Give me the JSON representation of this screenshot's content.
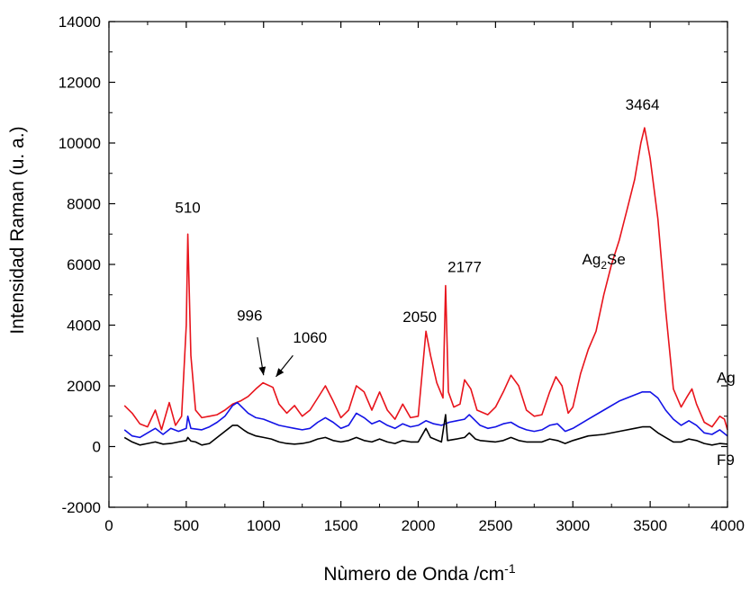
{
  "chart_data": {
    "type": "line",
    "xlabel": "Nùmero de Onda /cm",
    "xlabel_sup": "-1",
    "ylabel": "Intensidad Raman (u. a.)",
    "xlim": [
      0,
      4000
    ],
    "ylim": [
      -2000,
      14000
    ],
    "x_ticks": [
      0,
      500,
      1000,
      1500,
      2000,
      2500,
      3000,
      3500,
      4000
    ],
    "y_ticks": [
      -2000,
      0,
      2000,
      4000,
      6000,
      8000,
      10000,
      12000,
      14000
    ],
    "grid": false,
    "series": [
      {
        "name": "Ag2Se",
        "color": "#e8141c",
        "points": [
          [
            100,
            1350
          ],
          [
            150,
            1100
          ],
          [
            200,
            750
          ],
          [
            250,
            650
          ],
          [
            300,
            1200
          ],
          [
            340,
            550
          ],
          [
            390,
            1450
          ],
          [
            430,
            700
          ],
          [
            470,
            1000
          ],
          [
            500,
            4000
          ],
          [
            510,
            7000
          ],
          [
            530,
            3000
          ],
          [
            560,
            1200
          ],
          [
            600,
            950
          ],
          [
            650,
            1000
          ],
          [
            700,
            1050
          ],
          [
            750,
            1200
          ],
          [
            800,
            1400
          ],
          [
            850,
            1500
          ],
          [
            900,
            1650
          ],
          [
            950,
            1900
          ],
          [
            996,
            2100
          ],
          [
            1060,
            1950
          ],
          [
            1100,
            1400
          ],
          [
            1150,
            1100
          ],
          [
            1200,
            1350
          ],
          [
            1250,
            1000
          ],
          [
            1300,
            1200
          ],
          [
            1350,
            1600
          ],
          [
            1400,
            2000
          ],
          [
            1450,
            1500
          ],
          [
            1500,
            950
          ],
          [
            1550,
            1200
          ],
          [
            1600,
            2000
          ],
          [
            1650,
            1800
          ],
          [
            1700,
            1200
          ],
          [
            1750,
            1800
          ],
          [
            1800,
            1200
          ],
          [
            1850,
            900
          ],
          [
            1900,
            1400
          ],
          [
            1950,
            950
          ],
          [
            2000,
            1000
          ],
          [
            2050,
            3800
          ],
          [
            2080,
            3000
          ],
          [
            2120,
            2100
          ],
          [
            2160,
            1600
          ],
          [
            2177,
            5300
          ],
          [
            2195,
            1800
          ],
          [
            2230,
            1300
          ],
          [
            2270,
            1400
          ],
          [
            2300,
            2200
          ],
          [
            2340,
            1900
          ],
          [
            2380,
            1200
          ],
          [
            2450,
            1050
          ],
          [
            2500,
            1300
          ],
          [
            2550,
            1800
          ],
          [
            2600,
            2350
          ],
          [
            2650,
            2000
          ],
          [
            2700,
            1200
          ],
          [
            2750,
            1000
          ],
          [
            2800,
            1050
          ],
          [
            2850,
            1800
          ],
          [
            2890,
            2300
          ],
          [
            2930,
            2000
          ],
          [
            2970,
            1100
          ],
          [
            3000,
            1300
          ],
          [
            3050,
            2400
          ],
          [
            3100,
            3200
          ],
          [
            3150,
            3800
          ],
          [
            3200,
            5000
          ],
          [
            3250,
            6000
          ],
          [
            3300,
            6800
          ],
          [
            3350,
            7800
          ],
          [
            3400,
            8800
          ],
          [
            3440,
            10000
          ],
          [
            3464,
            10500
          ],
          [
            3500,
            9500
          ],
          [
            3550,
            7500
          ],
          [
            3600,
            4500
          ],
          [
            3650,
            1900
          ],
          [
            3700,
            1300
          ],
          [
            3740,
            1650
          ],
          [
            3770,
            1900
          ],
          [
            3800,
            1400
          ],
          [
            3850,
            800
          ],
          [
            3900,
            650
          ],
          [
            3950,
            1000
          ],
          [
            3980,
            900
          ],
          [
            4000,
            550
          ]
        ]
      },
      {
        "name": "Ag",
        "color": "#1212e6",
        "points": [
          [
            100,
            550
          ],
          [
            150,
            350
          ],
          [
            200,
            300
          ],
          [
            250,
            450
          ],
          [
            300,
            600
          ],
          [
            350,
            400
          ],
          [
            400,
            600
          ],
          [
            450,
            500
          ],
          [
            500,
            600
          ],
          [
            510,
            1000
          ],
          [
            530,
            600
          ],
          [
            600,
            550
          ],
          [
            650,
            650
          ],
          [
            700,
            800
          ],
          [
            750,
            1000
          ],
          [
            800,
            1350
          ],
          [
            830,
            1450
          ],
          [
            870,
            1250
          ],
          [
            900,
            1100
          ],
          [
            950,
            950
          ],
          [
            1000,
            900
          ],
          [
            1050,
            800
          ],
          [
            1100,
            700
          ],
          [
            1150,
            650
          ],
          [
            1200,
            600
          ],
          [
            1250,
            550
          ],
          [
            1300,
            600
          ],
          [
            1350,
            800
          ],
          [
            1400,
            950
          ],
          [
            1450,
            800
          ],
          [
            1500,
            600
          ],
          [
            1550,
            700
          ],
          [
            1600,
            1100
          ],
          [
            1650,
            950
          ],
          [
            1700,
            750
          ],
          [
            1750,
            850
          ],
          [
            1800,
            700
          ],
          [
            1850,
            600
          ],
          [
            1900,
            750
          ],
          [
            1950,
            650
          ],
          [
            2000,
            700
          ],
          [
            2050,
            850
          ],
          [
            2100,
            750
          ],
          [
            2150,
            700
          ],
          [
            2177,
            750
          ],
          [
            2200,
            800
          ],
          [
            2250,
            850
          ],
          [
            2300,
            900
          ],
          [
            2330,
            1050
          ],
          [
            2370,
            850
          ],
          [
            2400,
            700
          ],
          [
            2450,
            600
          ],
          [
            2500,
            650
          ],
          [
            2550,
            750
          ],
          [
            2600,
            800
          ],
          [
            2650,
            650
          ],
          [
            2700,
            550
          ],
          [
            2750,
            500
          ],
          [
            2800,
            550
          ],
          [
            2850,
            700
          ],
          [
            2900,
            750
          ],
          [
            2950,
            500
          ],
          [
            3000,
            600
          ],
          [
            3100,
            900
          ],
          [
            3200,
            1200
          ],
          [
            3300,
            1500
          ],
          [
            3400,
            1700
          ],
          [
            3450,
            1800
          ],
          [
            3500,
            1800
          ],
          [
            3550,
            1600
          ],
          [
            3600,
            1200
          ],
          [
            3650,
            900
          ],
          [
            3700,
            700
          ],
          [
            3750,
            850
          ],
          [
            3800,
            700
          ],
          [
            3850,
            450
          ],
          [
            3900,
            400
          ],
          [
            3950,
            550
          ],
          [
            4000,
            350
          ]
        ]
      },
      {
        "name": "F9",
        "color": "#000000",
        "points": [
          [
            100,
            300
          ],
          [
            150,
            150
          ],
          [
            200,
            50
          ],
          [
            250,
            100
          ],
          [
            300,
            150
          ],
          [
            350,
            80
          ],
          [
            400,
            100
          ],
          [
            450,
            150
          ],
          [
            500,
            200
          ],
          [
            510,
            300
          ],
          [
            530,
            180
          ],
          [
            560,
            150
          ],
          [
            600,
            50
          ],
          [
            650,
            100
          ],
          [
            700,
            300
          ],
          [
            750,
            500
          ],
          [
            800,
            700
          ],
          [
            830,
            700
          ],
          [
            870,
            550
          ],
          [
            900,
            450
          ],
          [
            950,
            350
          ],
          [
            1000,
            300
          ],
          [
            1050,
            250
          ],
          [
            1100,
            150
          ],
          [
            1150,
            100
          ],
          [
            1200,
            80
          ],
          [
            1250,
            100
          ],
          [
            1300,
            150
          ],
          [
            1350,
            250
          ],
          [
            1400,
            300
          ],
          [
            1450,
            200
          ],
          [
            1500,
            150
          ],
          [
            1550,
            200
          ],
          [
            1600,
            300
          ],
          [
            1650,
            200
          ],
          [
            1700,
            150
          ],
          [
            1750,
            250
          ],
          [
            1800,
            150
          ],
          [
            1850,
            100
          ],
          [
            1900,
            200
          ],
          [
            1950,
            150
          ],
          [
            2000,
            150
          ],
          [
            2050,
            600
          ],
          [
            2080,
            300
          ],
          [
            2150,
            150
          ],
          [
            2177,
            1050
          ],
          [
            2190,
            200
          ],
          [
            2250,
            250
          ],
          [
            2300,
            300
          ],
          [
            2330,
            450
          ],
          [
            2370,
            250
          ],
          [
            2400,
            200
          ],
          [
            2500,
            150
          ],
          [
            2550,
            200
          ],
          [
            2600,
            300
          ],
          [
            2650,
            200
          ],
          [
            2700,
            150
          ],
          [
            2800,
            150
          ],
          [
            2850,
            250
          ],
          [
            2900,
            200
          ],
          [
            2950,
            100
          ],
          [
            3000,
            200
          ],
          [
            3100,
            350
          ],
          [
            3200,
            400
          ],
          [
            3300,
            500
          ],
          [
            3400,
            600
          ],
          [
            3450,
            650
          ],
          [
            3500,
            650
          ],
          [
            3550,
            450
          ],
          [
            3600,
            300
          ],
          [
            3650,
            150
          ],
          [
            3700,
            150
          ],
          [
            3750,
            250
          ],
          [
            3800,
            200
          ],
          [
            3850,
            100
          ],
          [
            3900,
            50
          ],
          [
            3950,
            100
          ],
          [
            4000,
            80
          ]
        ]
      }
    ],
    "annotations": [
      {
        "text": "510",
        "x": 510,
        "y": 7700
      },
      {
        "text": "996",
        "x": 910,
        "y": 4150
      },
      {
        "text": "1060",
        "x": 1300,
        "y": 3420
      },
      {
        "text": "2050",
        "x": 2010,
        "y": 4100
      },
      {
        "text": "2177",
        "x": 2300,
        "y": 5750
      },
      {
        "text": "3464",
        "x": 3450,
        "y": 11100
      }
    ],
    "arrows": [
      {
        "from": [
          960,
          3600
        ],
        "to": [
          1000,
          2350
        ]
      },
      {
        "from": [
          1190,
          3000
        ],
        "to": [
          1080,
          2300
        ]
      }
    ],
    "series_labels": [
      {
        "parts": [
          "Ag",
          "2",
          "Se"
        ],
        "x": 3060,
        "y": 6000
      },
      {
        "parts": [
          "Ag"
        ],
        "x": 3930,
        "y": 2100
      },
      {
        "parts": [
          "F9"
        ],
        "x": 3930,
        "y": -600
      }
    ]
  }
}
